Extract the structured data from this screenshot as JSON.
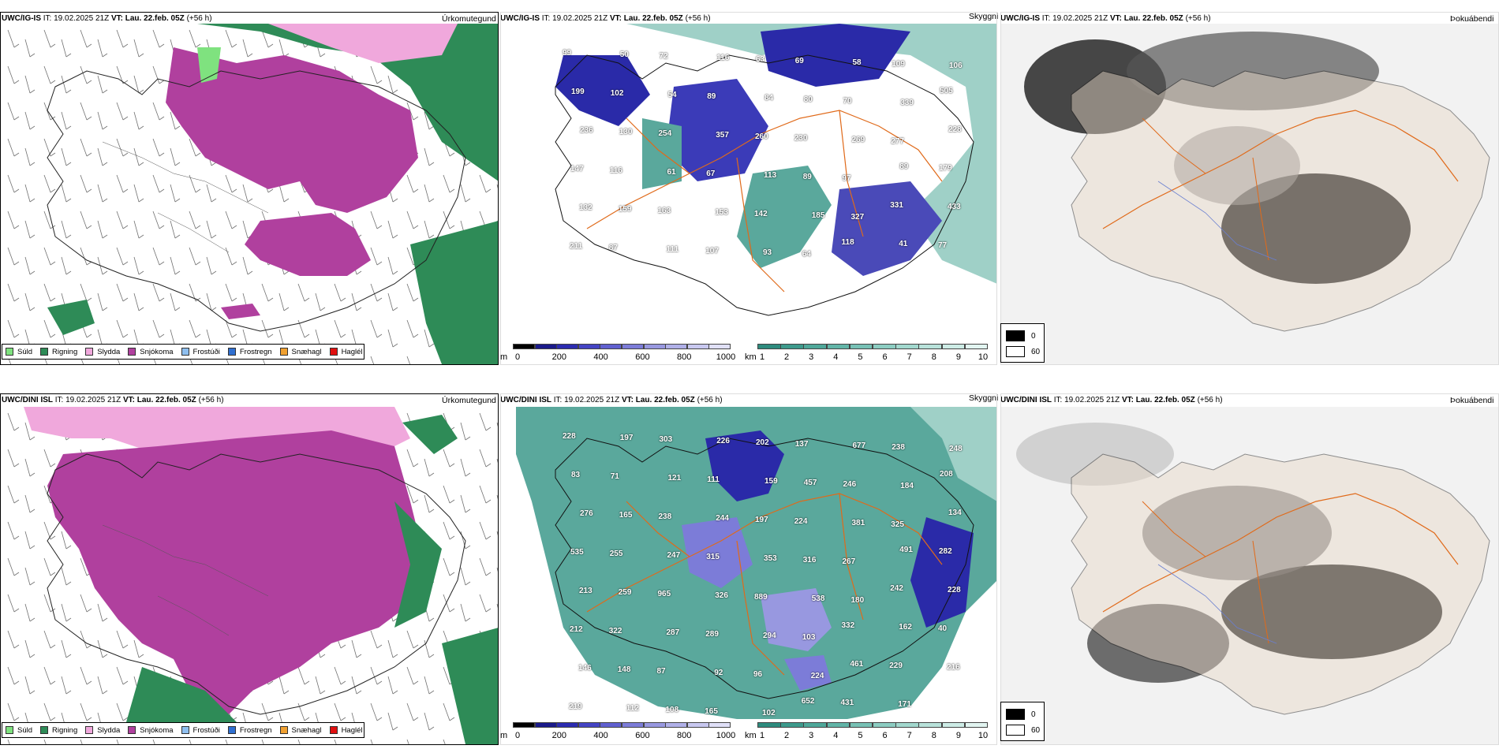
{
  "row1": {
    "left": {
      "model": "UWC/IG-IS",
      "it": "IT: 19.02.2025 21Z",
      "vt_label": "VT:",
      "vt": "Lau. 22.feb. 05Z",
      "lead": "(+56 h)",
      "title": "Úrkomutegund"
    },
    "middle": {
      "model": "UWC/IG-IS",
      "it": "IT: 19.02.2025 21Z",
      "vt_label": "VT:",
      "vt": "Lau. 22.feb. 05Z",
      "lead": "(+56 h)",
      "title": "Skyggni"
    },
    "right": {
      "model": "UWC/IG-IS",
      "it": "IT: 19.02.2025 21Z",
      "vt_label": "VT:",
      "vt": "Lau. 22.feb. 05Z",
      "lead": "(+56 h)",
      "title": "Þokuábendi"
    },
    "labels": [
      "99",
      "50",
      "72",
      "116",
      "63",
      "69",
      "58",
      "109",
      "106",
      "199",
      "102",
      "54",
      "89",
      "84",
      "80",
      "70",
      "339",
      "505",
      "236",
      "130",
      "254",
      "357",
      "260",
      "230",
      "269",
      "277",
      "228",
      "147",
      "116",
      "61",
      "67",
      "113",
      "89",
      "97",
      "89",
      "179",
      "132",
      "159",
      "163",
      "153",
      "142",
      "185",
      "327",
      "331",
      "433",
      "211",
      "87",
      "111",
      "107",
      "93",
      "64",
      "118",
      "41",
      "77"
    ]
  },
  "row2": {
    "left": {
      "model": "UWC/DINI ISL",
      "it": "IT: 19.02.2025 21Z",
      "vt_label": "VT:",
      "vt": "Lau. 22.feb. 05Z",
      "lead": "(+56 h)",
      "title": "Úrkomutegund"
    },
    "middle": {
      "model": "UWC/DINI ISL",
      "it": "IT: 19.02.2025 21Z",
      "vt_label": "VT:",
      "vt": "Lau. 22.feb. 05Z",
      "lead": "(+56 h)",
      "title": "Skyggni"
    },
    "right": {
      "model": "UWC/DINI ISL",
      "it": "IT: 19.02.2025 21Z",
      "vt_label": "VT:",
      "vt": "Lau. 22.feb. 05Z",
      "lead": "(+56 h)",
      "title": "Þokuábendi"
    },
    "labels": [
      "228",
      "197",
      "303",
      "226",
      "202",
      "137",
      "677",
      "238",
      "248",
      "83",
      "71",
      "121",
      "111",
      "159",
      "457",
      "246",
      "184",
      "208",
      "276",
      "165",
      "238",
      "244",
      "197",
      "224",
      "381",
      "325",
      "134",
      "535",
      "255",
      "247",
      "315",
      "353",
      "316",
      "267",
      "491",
      "282",
      "213",
      "259",
      "965",
      "326",
      "889",
      "538",
      "180",
      "242",
      "228",
      "212",
      "322",
      "287",
      "289",
      "294",
      "103",
      "332",
      "162",
      "40",
      "146",
      "148",
      "87",
      "92",
      "96",
      "224",
      "461",
      "229",
      "216",
      "219",
      "112",
      "108",
      "165",
      "102",
      "652",
      "431",
      "171"
    ]
  },
  "precip_legend": [
    {
      "label": "Súld",
      "color": "#7fe27f"
    },
    {
      "label": "Rigning",
      "color": "#2e8b57"
    },
    {
      "label": "Slydda",
      "color": "#f0a8dc"
    },
    {
      "label": "Snjókoma",
      "color": "#b0409e"
    },
    {
      "label": "Frostúði",
      "color": "#8fbfef"
    },
    {
      "label": "Frostregn",
      "color": "#2f6fd0"
    },
    {
      "label": "Snæhagl",
      "color": "#f0a030"
    },
    {
      "label": "Haglél",
      "color": "#e01010"
    }
  ],
  "vis_colorbar_m": {
    "unit": "m",
    "ticks": [
      "0",
      "200",
      "400",
      "600",
      "800",
      "1000"
    ],
    "colors": [
      "#000000",
      "#1a1a8a",
      "#2b2bb0",
      "#4444c4",
      "#6060d0",
      "#7c7cd8",
      "#9898e0",
      "#b0b0e8",
      "#c8c8f0",
      "#e0e0f8"
    ]
  },
  "vis_colorbar_km": {
    "unit": "km",
    "ticks": [
      "1",
      "2",
      "3",
      "4",
      "5",
      "6",
      "7",
      "8",
      "9",
      "10"
    ],
    "colors": [
      "#2e8b7e",
      "#3d9a8c",
      "#4fa89a",
      "#62b5a8",
      "#77c1b5",
      "#8ccdc2",
      "#a2d8ce",
      "#b8e2da",
      "#cdece6",
      "#e2f5f1"
    ]
  },
  "fog_legend": {
    "black_label": "0",
    "white_label": "60"
  },
  "colors": {
    "rain": "#2e8b57",
    "snow": "#b0409e",
    "sleet": "#f0a8dc",
    "drizzle": "#7fe27f",
    "vis_teal": "#5aa89c",
    "vis_blue": "#2a2aa8",
    "road": "#e06a1a"
  }
}
